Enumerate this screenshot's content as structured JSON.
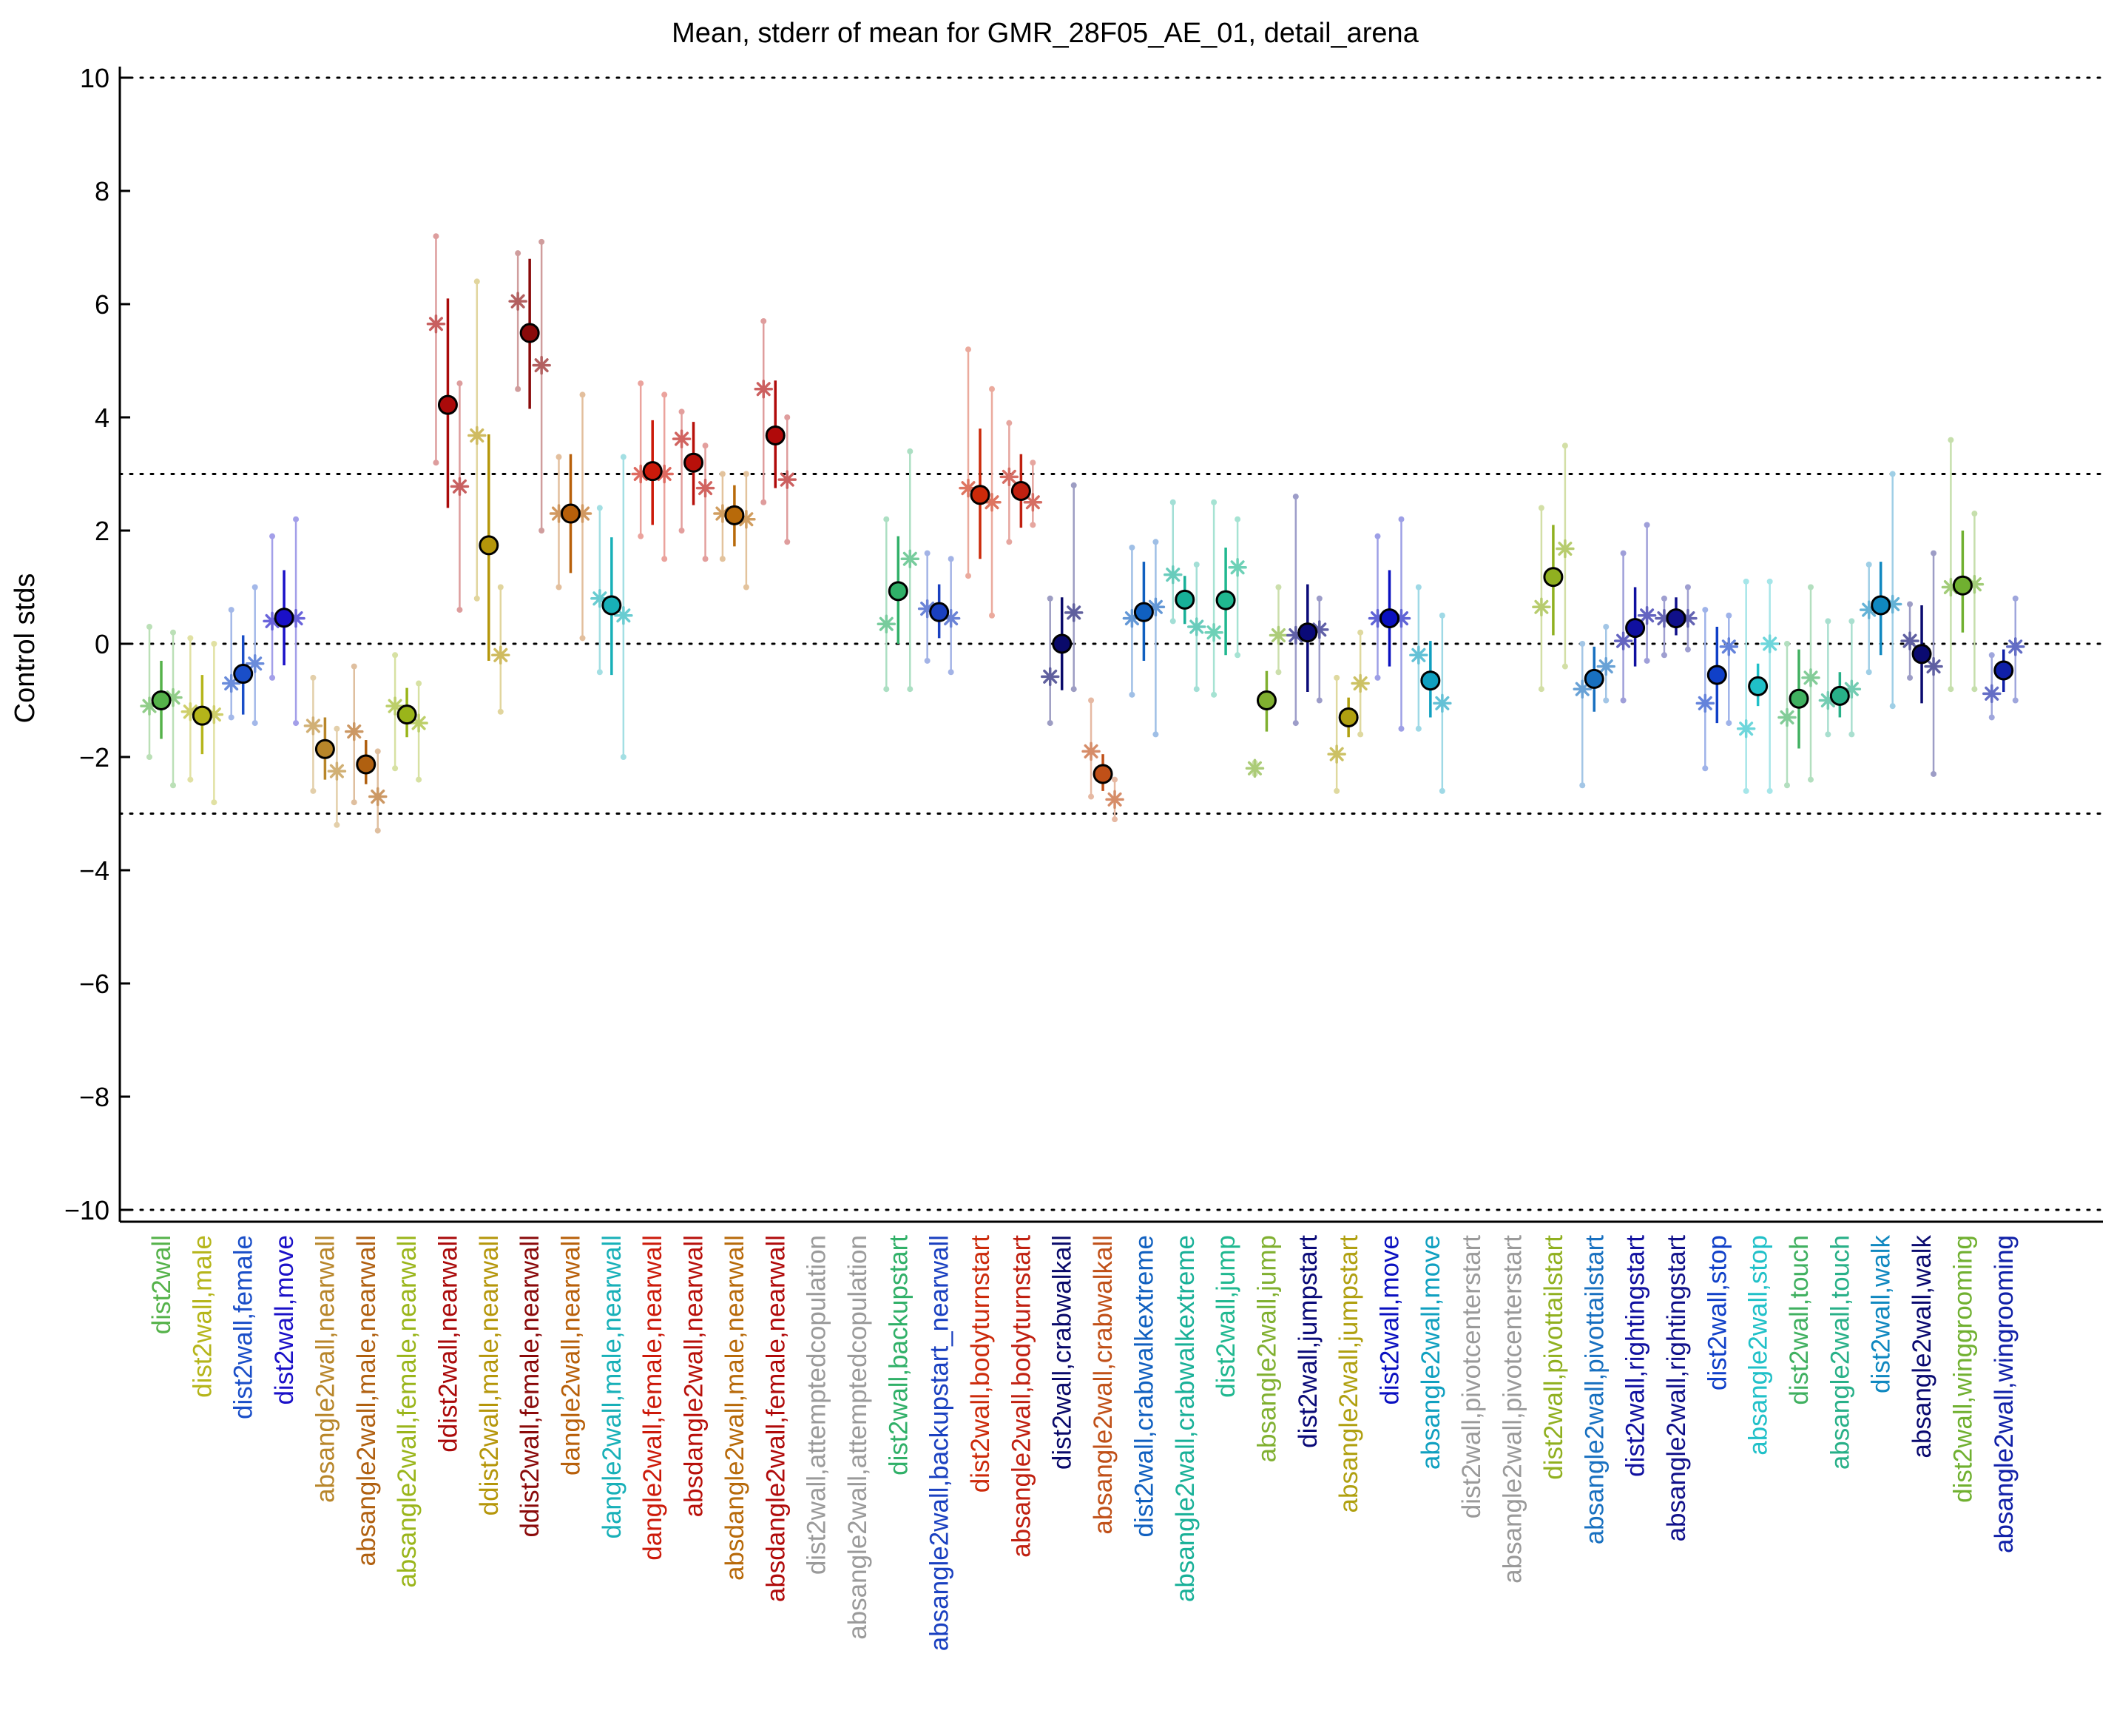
{
  "chart_data": {
    "type": "scatter",
    "title": "Mean, stderr of mean for GMR_28F05_AE_01, detail_arena",
    "ylabel": "Control stds",
    "xlabel": "",
    "ylim": [
      -10,
      10
    ],
    "yticks": [
      10,
      8,
      6,
      4,
      2,
      0,
      -2,
      -4,
      -6,
      -8,
      -10
    ],
    "ytick_labels": [
      "10",
      "8",
      "6",
      "4",
      "2",
      "0",
      "−2",
      "−4",
      "−6",
      "−8",
      "−10"
    ],
    "reference_lines": [
      10,
      3,
      0,
      -3,
      -10
    ],
    "grid": false,
    "legend": "none",
    "categories": [
      "dist2wall",
      "dist2wall,male",
      "dist2wall,female",
      "dist2wall,move",
      "absangle2wall,nearwall",
      "absangle2wall,male,nearwall",
      "absangle2wall,female,nearwall",
      "ddist2wall,nearwall",
      "ddist2wall,male,nearwall",
      "ddist2wall,female,nearwall",
      "dangle2wall,nearwall",
      "dangle2wall,male,nearwall",
      "dangle2wall,female,nearwall",
      "absdangle2wall,nearwall",
      "absdangle2wall,male,nearwall",
      "absdangle2wall,female,nearwall",
      "dist2wall,attemptedcopulation",
      "absangle2wall,attemptedcopulation",
      "dist2wall,backupstart",
      "absangle2wall,backupstart_nearwall",
      "dist2wall,bodyturnstart",
      "absangle2wall,bodyturnstart",
      "dist2wall,crabwalkall",
      "absangle2wall,crabwalkall",
      "dist2wall,crabwalkextreme",
      "absangle2wall,crabwalkextreme",
      "dist2wall,jump",
      "absangle2wall,jump",
      "dist2wall,jumpstart",
      "absangle2wall,jumpstart",
      "dist2wall,move",
      "absangle2wall,move",
      "dist2wall,pivotcenterstart",
      "absangle2wall,pivotcenterstart",
      "dist2wall,pivottailstart",
      "absangle2wall,pivottailstart",
      "dist2wall,rightingstart",
      "absangle2wall,rightingstart",
      "dist2wall,stop",
      "absangle2wall,stop",
      "dist2wall,touch",
      "absangle2wall,touch",
      "dist2wall,walk",
      "absangle2wall,walk",
      "dist2wall,winggrooming",
      "absangle2wall,wingrooming"
    ],
    "colors": [
      "#55b24a",
      "#b5b51a",
      "#1a4ec8",
      "#1a10c8",
      "#b8862a",
      "#b06010",
      "#9ab51a",
      "#aa0a0a",
      "#b5960a",
      "#8a0a0a",
      "#b8600a",
      "#18b0b8",
      "#cc1a0a",
      "#b8100a",
      "#b86a0a",
      "#b00a0a",
      "#9a9a9a",
      "#9a9a9a",
      "#30b068",
      "#1a40c0",
      "#cc2a0a",
      "#c02010",
      "#0a0a6a",
      "#c05018",
      "#1060c0",
      "#18b098",
      "#20b890",
      "#80b030",
      "#0a0a78",
      "#b0a010",
      "#0a10c0",
      "#10a0c0",
      "#9a9a9a",
      "#9a9a9a",
      "#90b020",
      "#1870c0",
      "#1010a0",
      "#10108a",
      "#1040c8",
      "#20c0c8",
      "#40b060",
      "#28b088",
      "#1088c0",
      "#0a0a70",
      "#70b030",
      "#1020a8"
    ],
    "series": [
      {
        "name": "mean",
        "values": [
          -1.0,
          -1.27,
          -0.53,
          0.46,
          -1.86,
          -2.13,
          -1.25,
          4.22,
          1.74,
          5.49,
          2.3,
          0.68,
          3.05,
          3.2,
          2.27,
          3.68,
          null,
          null,
          0.93,
          0.56,
          2.63,
          2.7,
          0.0,
          -2.3,
          0.56,
          0.78,
          0.77,
          -1.0,
          0.2,
          -1.3,
          0.45,
          -0.65,
          null,
          null,
          1.18,
          -0.62,
          0.28,
          0.45,
          -0.55,
          -0.75,
          -0.97,
          -0.92,
          0.68,
          -0.18,
          1.03,
          -0.47
        ],
        "err_low": [
          -1.68,
          -1.95,
          -1.25,
          -0.38,
          -2.4,
          -2.48,
          -1.65,
          2.4,
          -0.3,
          4.15,
          1.25,
          -0.55,
          2.1,
          2.45,
          1.72,
          2.75,
          null,
          null,
          0.0,
          0.1,
          1.5,
          2.05,
          -0.82,
          -2.6,
          -0.3,
          0.35,
          -0.2,
          -1.55,
          -0.85,
          -1.65,
          -0.4,
          -1.3,
          null,
          null,
          0.15,
          -1.2,
          -0.4,
          0.15,
          -1.4,
          -1.1,
          -1.85,
          -1.3,
          -0.2,
          -1.05,
          0.2,
          -0.85
        ],
        "err_high": [
          -0.3,
          -0.55,
          0.15,
          1.3,
          -1.3,
          -1.7,
          -0.78,
          6.1,
          3.7,
          6.8,
          3.35,
          1.88,
          3.95,
          3.92,
          2.8,
          4.65,
          null,
          null,
          1.9,
          1.05,
          3.8,
          3.35,
          0.82,
          -1.95,
          1.45,
          1.2,
          1.7,
          -0.48,
          1.05,
          -0.95,
          1.3,
          0.05,
          null,
          null,
          2.1,
          -0.05,
          1.0,
          0.82,
          0.3,
          -0.35,
          -0.1,
          -0.5,
          1.45,
          0.68,
          2.0,
          -0.1
        ]
      },
      {
        "name": "control_left",
        "values": [
          -1.1,
          -1.2,
          -0.7,
          0.4,
          -1.45,
          -1.55,
          -1.1,
          5.65,
          3.68,
          6.05,
          2.3,
          0.8,
          3.0,
          3.62,
          2.3,
          4.5,
          null,
          null,
          0.35,
          0.62,
          2.75,
          2.95,
          -0.58,
          -1.9,
          0.45,
          1.22,
          0.2,
          -2.2,
          0.15,
          -1.95,
          0.45,
          -0.2,
          null,
          null,
          0.65,
          -0.8,
          0.05,
          0.45,
          -1.05,
          -1.5,
          -1.3,
          -1.0,
          0.6,
          0.05,
          1.0,
          -0.88
        ],
        "err_low": [
          -2.0,
          -2.4,
          -1.3,
          -0.6,
          -2.6,
          -2.8,
          -2.2,
          3.2,
          0.8,
          4.5,
          1.0,
          -0.5,
          1.9,
          2.0,
          1.5,
          2.5,
          null,
          null,
          -0.8,
          -0.3,
          1.2,
          1.8,
          -1.4,
          -2.7,
          -0.9,
          0.4,
          -0.9,
          -2.3,
          -1.4,
          -2.6,
          -0.6,
          -1.5,
          null,
          null,
          -0.8,
          -2.5,
          -1.0,
          -0.2,
          -2.2,
          -2.6,
          -2.5,
          -1.6,
          -0.5,
          -0.6,
          -0.8,
          -1.3
        ],
        "err_high": [
          0.3,
          0.1,
          0.6,
          1.9,
          -0.6,
          -0.4,
          -0.2,
          7.2,
          6.4,
          6.9,
          3.3,
          2.4,
          4.6,
          4.1,
          3.0,
          5.7,
          null,
          null,
          2.2,
          1.6,
          5.2,
          3.9,
          0.8,
          -1.0,
          1.7,
          2.5,
          2.5,
          -2.1,
          2.6,
          -0.6,
          1.9,
          1.0,
          null,
          null,
          2.4,
          0.0,
          1.6,
          0.8,
          0.6,
          1.1,
          0.0,
          0.4,
          1.4,
          0.7,
          3.6,
          -0.2
        ]
      },
      {
        "name": "control_right",
        "values": [
          -0.95,
          -1.25,
          -0.35,
          0.45,
          -2.25,
          -2.7,
          -1.4,
          2.78,
          -0.2,
          4.92,
          2.3,
          0.5,
          3.0,
          2.75,
          2.2,
          2.9,
          null,
          null,
          1.5,
          0.45,
          2.5,
          2.5,
          0.55,
          -2.75,
          0.65,
          0.3,
          1.35,
          0.15,
          0.25,
          -0.7,
          0.45,
          -1.05,
          null,
          null,
          1.68,
          -0.4,
          0.5,
          0.45,
          -0.05,
          0.0,
          -0.6,
          -0.8,
          0.7,
          -0.4,
          1.05,
          -0.05
        ],
        "err_low": [
          -2.5,
          -2.8,
          -1.4,
          -1.4,
          -3.2,
          -3.3,
          -2.4,
          0.6,
          -1.2,
          2.0,
          0.1,
          -2.0,
          1.5,
          1.5,
          1.0,
          1.8,
          null,
          null,
          -0.8,
          -0.5,
          0.5,
          2.1,
          -0.8,
          -3.1,
          -1.6,
          -0.8,
          -0.2,
          -0.5,
          -1.0,
          -1.6,
          -1.5,
          -2.6,
          null,
          null,
          -0.4,
          -1.0,
          -0.3,
          -0.1,
          -1.4,
          -2.6,
          -2.4,
          -1.6,
          -1.1,
          -2.3,
          -0.8,
          -1.0
        ],
        "err_high": [
          0.2,
          0.0,
          1.0,
          2.2,
          -1.5,
          -1.9,
          -0.7,
          4.6,
          1.0,
          7.1,
          4.4,
          3.3,
          4.4,
          3.5,
          3.0,
          4.0,
          null,
          null,
          3.4,
          1.5,
          4.5,
          3.2,
          2.8,
          -2.4,
          1.8,
          1.4,
          2.2,
          1.0,
          0.8,
          0.2,
          2.2,
          0.5,
          null,
          null,
          3.5,
          0.3,
          2.1,
          1.0,
          0.5,
          1.1,
          1.0,
          0.4,
          3.0,
          1.6,
          2.3,
          0.8
        ]
      }
    ]
  }
}
